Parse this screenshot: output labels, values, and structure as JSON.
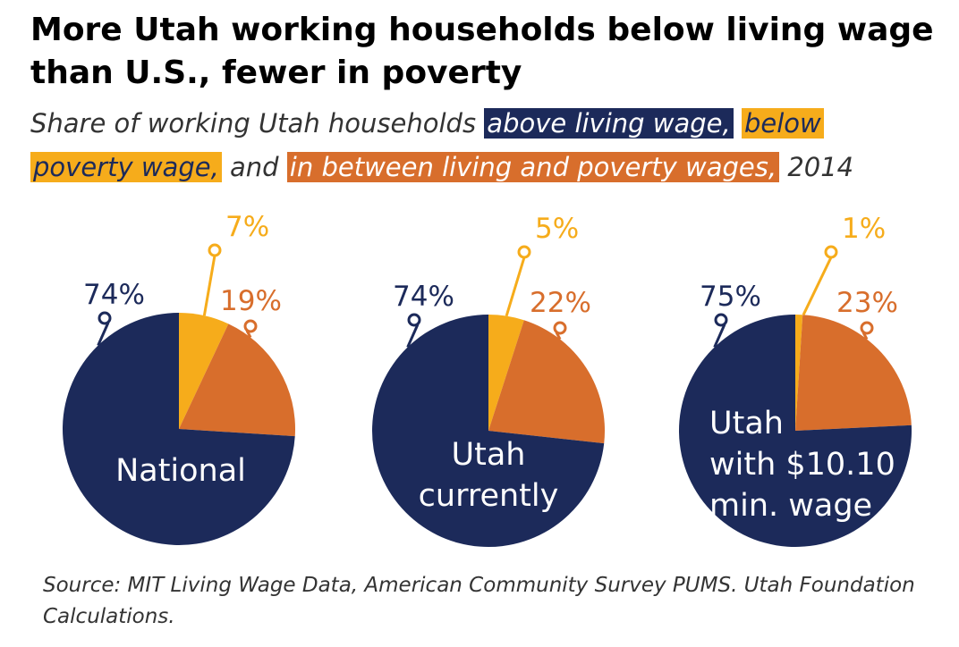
{
  "title": "More Utah working households below living wage than U.S., fewer in poverty",
  "subtitle": {
    "intro": "Share of working Utah households",
    "above": "above living wage,",
    "poverty_line1": "below",
    "poverty_line2": "poverty wage,",
    "and": "and",
    "between": "in between living and poverty wages,",
    "year": "2014"
  },
  "source": "Source: MIT Living Wage Data, American Community Survey PUMS. Utah Foundation Calculations.",
  "colors": {
    "above": "#1c2a5a",
    "poverty": "#f6ac1b",
    "between": "#d86e2c"
  },
  "chart_data": {
    "type": "pie",
    "series_order": [
      "below poverty wage",
      "in between living and poverty wages",
      "above living wage"
    ],
    "charts": [
      {
        "label_lines": [
          "National"
        ],
        "values": {
          "poverty": 7,
          "between": 19,
          "above": 74
        },
        "value_labels": {
          "poverty": "7%",
          "between": "19%",
          "above": "74%"
        }
      },
      {
        "label_lines": [
          "Utah",
          "currently"
        ],
        "values": {
          "poverty": 5,
          "between": 22,
          "above": 74
        },
        "value_labels": {
          "poverty": "5%",
          "between": "22%",
          "above": "74%"
        }
      },
      {
        "label_lines": [
          "Utah",
          "with $10.10",
          "min. wage"
        ],
        "values": {
          "poverty": 1,
          "between": 23,
          "above": 75
        },
        "value_labels": {
          "poverty": "1%",
          "between": "23%",
          "above": "75%"
        }
      }
    ]
  }
}
